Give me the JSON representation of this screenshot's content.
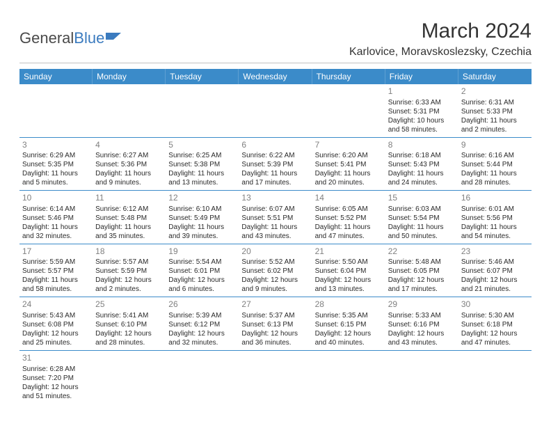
{
  "logo": {
    "part1": "General",
    "part2": "Blue"
  },
  "title": "March 2024",
  "location": "Karlovice, Moravskoslezsky, Czechia",
  "weekdays": [
    "Sunday",
    "Monday",
    "Tuesday",
    "Wednesday",
    "Thursday",
    "Friday",
    "Saturday"
  ],
  "colors": {
    "header_bg": "#3b8bc9",
    "header_text": "#ffffff",
    "logo_blue": "#3b7bbf",
    "row_border": "#3b8bc9",
    "day_num": "#808080",
    "text": "#2a2a2a"
  },
  "weeks": [
    [
      null,
      null,
      null,
      null,
      null,
      {
        "num": "1",
        "sunrise": "Sunrise: 6:33 AM",
        "sunset": "Sunset: 5:31 PM",
        "daylight": "Daylight: 10 hours and 58 minutes."
      },
      {
        "num": "2",
        "sunrise": "Sunrise: 6:31 AM",
        "sunset": "Sunset: 5:33 PM",
        "daylight": "Daylight: 11 hours and 2 minutes."
      }
    ],
    [
      {
        "num": "3",
        "sunrise": "Sunrise: 6:29 AM",
        "sunset": "Sunset: 5:35 PM",
        "daylight": "Daylight: 11 hours and 5 minutes."
      },
      {
        "num": "4",
        "sunrise": "Sunrise: 6:27 AM",
        "sunset": "Sunset: 5:36 PM",
        "daylight": "Daylight: 11 hours and 9 minutes."
      },
      {
        "num": "5",
        "sunrise": "Sunrise: 6:25 AM",
        "sunset": "Sunset: 5:38 PM",
        "daylight": "Daylight: 11 hours and 13 minutes."
      },
      {
        "num": "6",
        "sunrise": "Sunrise: 6:22 AM",
        "sunset": "Sunset: 5:39 PM",
        "daylight": "Daylight: 11 hours and 17 minutes."
      },
      {
        "num": "7",
        "sunrise": "Sunrise: 6:20 AM",
        "sunset": "Sunset: 5:41 PM",
        "daylight": "Daylight: 11 hours and 20 minutes."
      },
      {
        "num": "8",
        "sunrise": "Sunrise: 6:18 AM",
        "sunset": "Sunset: 5:43 PM",
        "daylight": "Daylight: 11 hours and 24 minutes."
      },
      {
        "num": "9",
        "sunrise": "Sunrise: 6:16 AM",
        "sunset": "Sunset: 5:44 PM",
        "daylight": "Daylight: 11 hours and 28 minutes."
      }
    ],
    [
      {
        "num": "10",
        "sunrise": "Sunrise: 6:14 AM",
        "sunset": "Sunset: 5:46 PM",
        "daylight": "Daylight: 11 hours and 32 minutes."
      },
      {
        "num": "11",
        "sunrise": "Sunrise: 6:12 AM",
        "sunset": "Sunset: 5:48 PM",
        "daylight": "Daylight: 11 hours and 35 minutes."
      },
      {
        "num": "12",
        "sunrise": "Sunrise: 6:10 AM",
        "sunset": "Sunset: 5:49 PM",
        "daylight": "Daylight: 11 hours and 39 minutes."
      },
      {
        "num": "13",
        "sunrise": "Sunrise: 6:07 AM",
        "sunset": "Sunset: 5:51 PM",
        "daylight": "Daylight: 11 hours and 43 minutes."
      },
      {
        "num": "14",
        "sunrise": "Sunrise: 6:05 AM",
        "sunset": "Sunset: 5:52 PM",
        "daylight": "Daylight: 11 hours and 47 minutes."
      },
      {
        "num": "15",
        "sunrise": "Sunrise: 6:03 AM",
        "sunset": "Sunset: 5:54 PM",
        "daylight": "Daylight: 11 hours and 50 minutes."
      },
      {
        "num": "16",
        "sunrise": "Sunrise: 6:01 AM",
        "sunset": "Sunset: 5:56 PM",
        "daylight": "Daylight: 11 hours and 54 minutes."
      }
    ],
    [
      {
        "num": "17",
        "sunrise": "Sunrise: 5:59 AM",
        "sunset": "Sunset: 5:57 PM",
        "daylight": "Daylight: 11 hours and 58 minutes."
      },
      {
        "num": "18",
        "sunrise": "Sunrise: 5:57 AM",
        "sunset": "Sunset: 5:59 PM",
        "daylight": "Daylight: 12 hours and 2 minutes."
      },
      {
        "num": "19",
        "sunrise": "Sunrise: 5:54 AM",
        "sunset": "Sunset: 6:01 PM",
        "daylight": "Daylight: 12 hours and 6 minutes."
      },
      {
        "num": "20",
        "sunrise": "Sunrise: 5:52 AM",
        "sunset": "Sunset: 6:02 PM",
        "daylight": "Daylight: 12 hours and 9 minutes."
      },
      {
        "num": "21",
        "sunrise": "Sunrise: 5:50 AM",
        "sunset": "Sunset: 6:04 PM",
        "daylight": "Daylight: 12 hours and 13 minutes."
      },
      {
        "num": "22",
        "sunrise": "Sunrise: 5:48 AM",
        "sunset": "Sunset: 6:05 PM",
        "daylight": "Daylight: 12 hours and 17 minutes."
      },
      {
        "num": "23",
        "sunrise": "Sunrise: 5:46 AM",
        "sunset": "Sunset: 6:07 PM",
        "daylight": "Daylight: 12 hours and 21 minutes."
      }
    ],
    [
      {
        "num": "24",
        "sunrise": "Sunrise: 5:43 AM",
        "sunset": "Sunset: 6:08 PM",
        "daylight": "Daylight: 12 hours and 25 minutes."
      },
      {
        "num": "25",
        "sunrise": "Sunrise: 5:41 AM",
        "sunset": "Sunset: 6:10 PM",
        "daylight": "Daylight: 12 hours and 28 minutes."
      },
      {
        "num": "26",
        "sunrise": "Sunrise: 5:39 AM",
        "sunset": "Sunset: 6:12 PM",
        "daylight": "Daylight: 12 hours and 32 minutes."
      },
      {
        "num": "27",
        "sunrise": "Sunrise: 5:37 AM",
        "sunset": "Sunset: 6:13 PM",
        "daylight": "Daylight: 12 hours and 36 minutes."
      },
      {
        "num": "28",
        "sunrise": "Sunrise: 5:35 AM",
        "sunset": "Sunset: 6:15 PM",
        "daylight": "Daylight: 12 hours and 40 minutes."
      },
      {
        "num": "29",
        "sunrise": "Sunrise: 5:33 AM",
        "sunset": "Sunset: 6:16 PM",
        "daylight": "Daylight: 12 hours and 43 minutes."
      },
      {
        "num": "30",
        "sunrise": "Sunrise: 5:30 AM",
        "sunset": "Sunset: 6:18 PM",
        "daylight": "Daylight: 12 hours and 47 minutes."
      }
    ],
    [
      {
        "num": "31",
        "sunrise": "Sunrise: 6:28 AM",
        "sunset": "Sunset: 7:20 PM",
        "daylight": "Daylight: 12 hours and 51 minutes."
      },
      null,
      null,
      null,
      null,
      null,
      null
    ]
  ]
}
